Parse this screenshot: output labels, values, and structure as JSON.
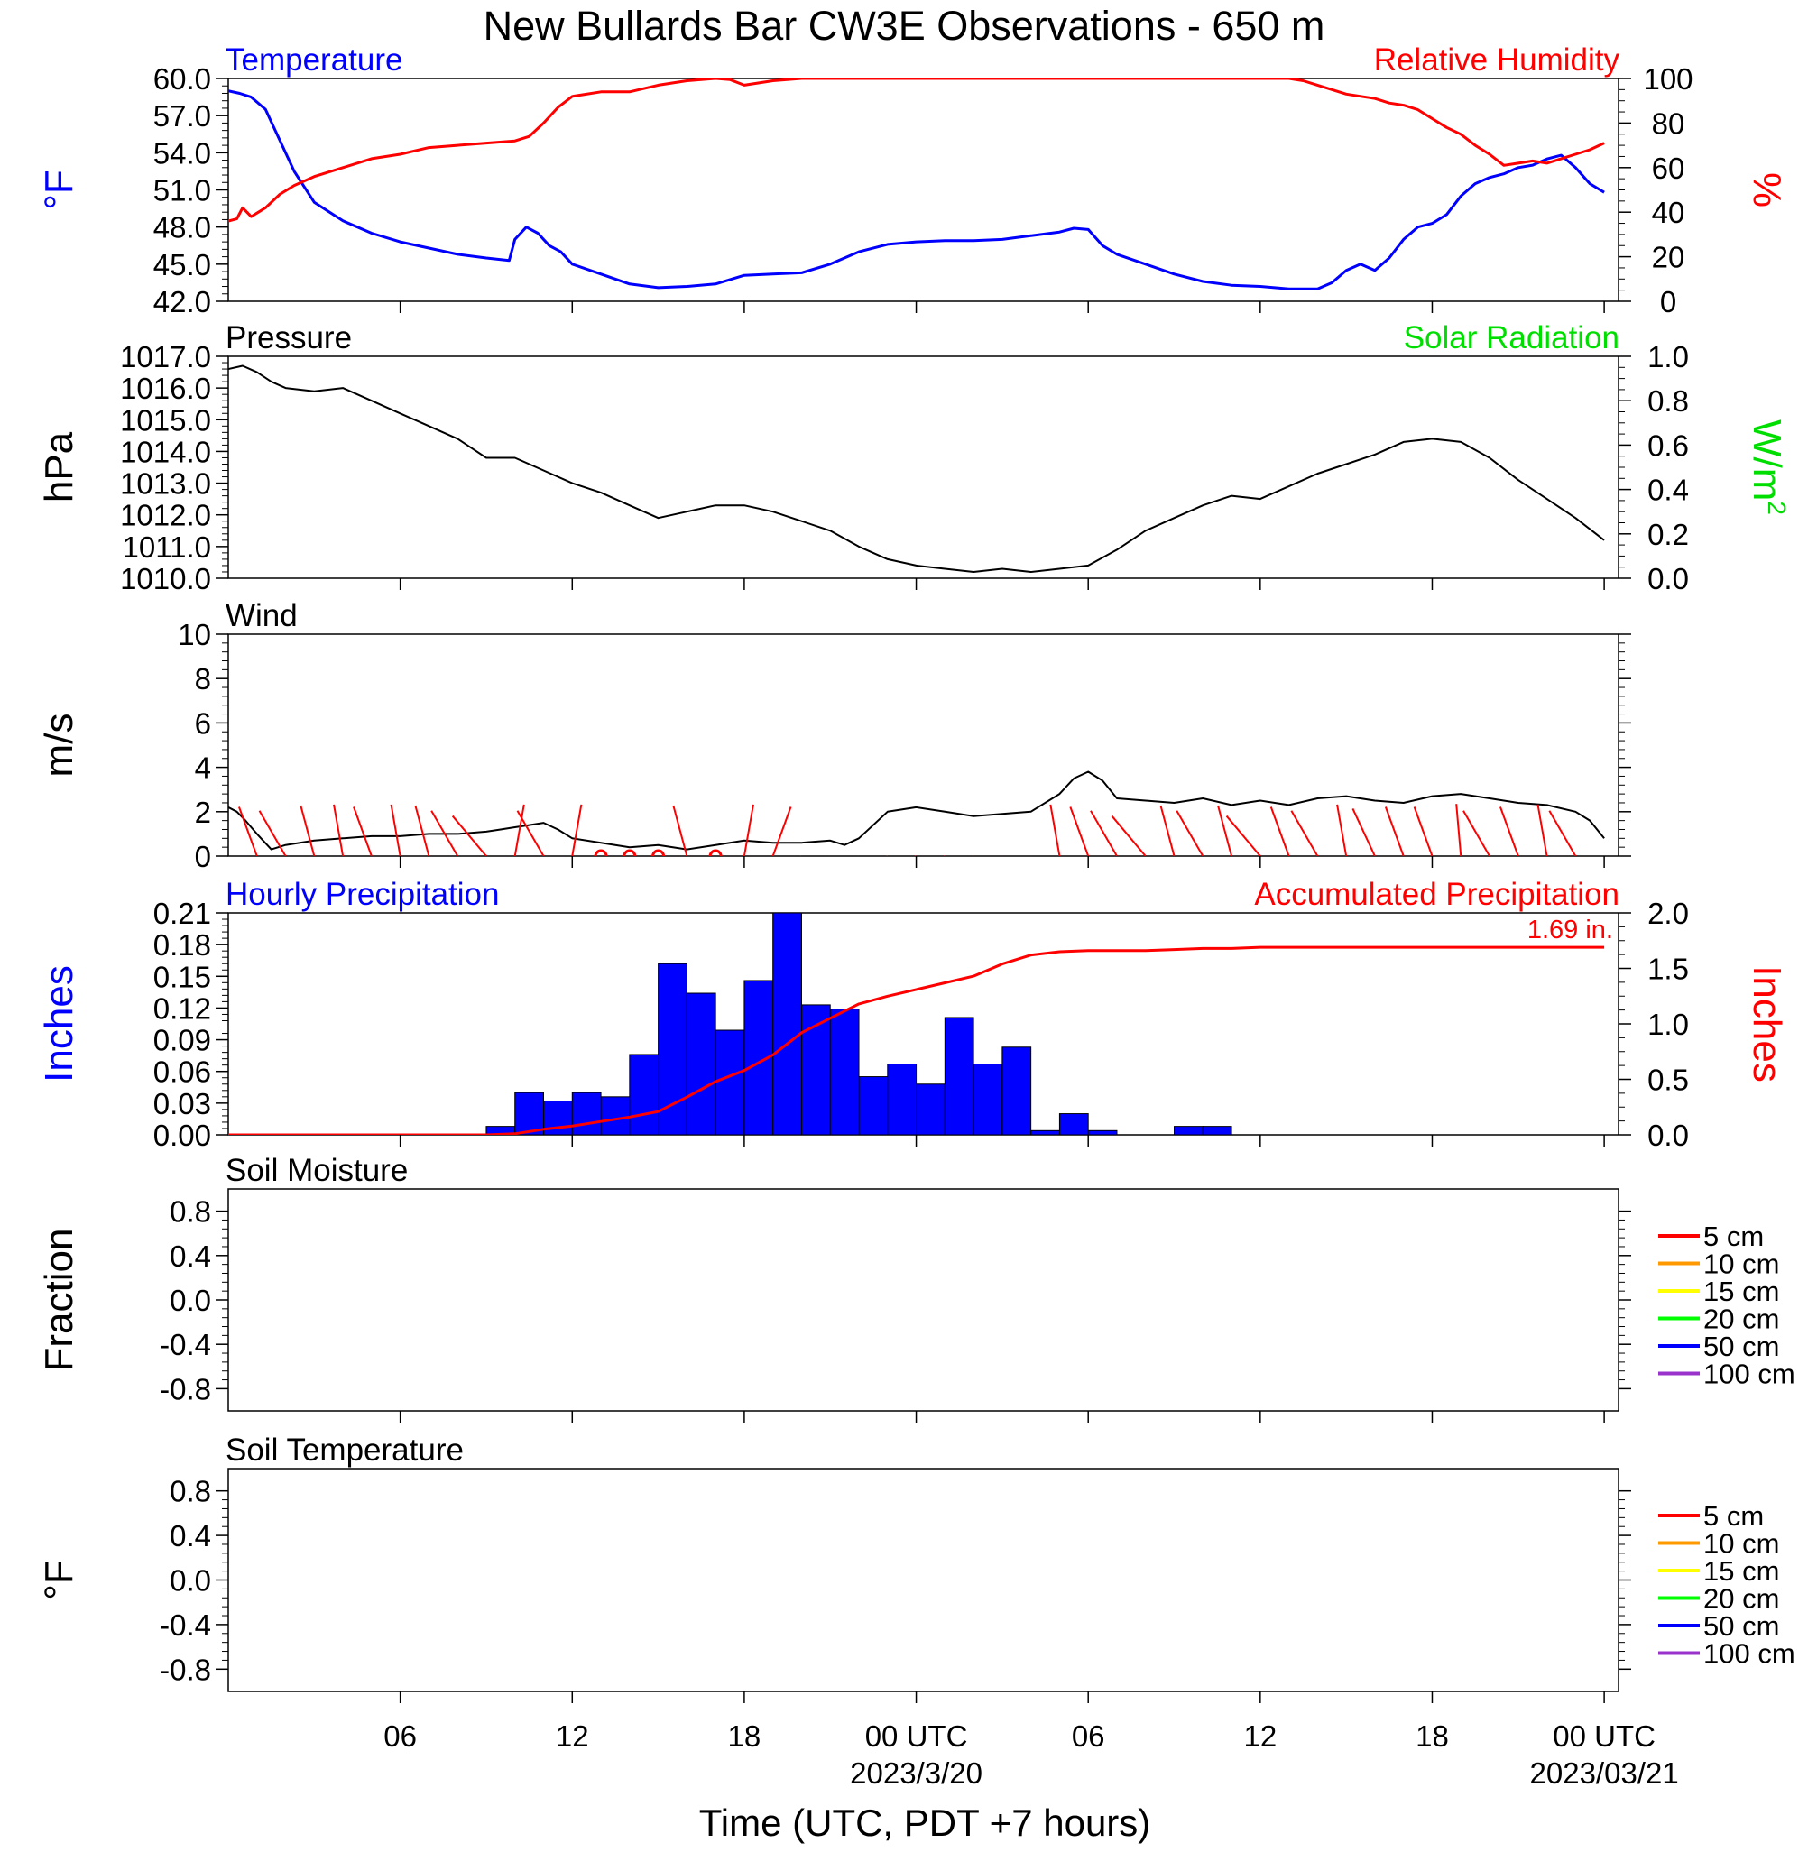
{
  "title": "New Bullards Bar CW3E Observations - 650 m",
  "xaxis": {
    "label": "Time (UTC, PDT +7 hours)",
    "ticks": [
      {
        "hour": 6,
        "label": "06",
        "date": ""
      },
      {
        "hour": 12,
        "label": "12",
        "date": ""
      },
      {
        "hour": 18,
        "label": "18",
        "date": ""
      },
      {
        "hour": 24,
        "label": "00 UTC",
        "date": "2023/3/20"
      },
      {
        "hour": 30,
        "label": "06",
        "date": ""
      },
      {
        "hour": 36,
        "label": "12",
        "date": ""
      },
      {
        "hour": 42,
        "label": "18",
        "date": ""
      },
      {
        "hour": 48,
        "label": "00 UTC",
        "date": "2023/03/21"
      }
    ]
  },
  "chart_data": [
    {
      "id": "temp-rh",
      "type": "line",
      "left_title": "Temperature",
      "right_title": "Relative Humidity",
      "ylabel_left": "°F",
      "ylabel_right": "%",
      "ylim_left": [
        42,
        60
      ],
      "ylim_right": [
        0,
        100
      ],
      "yticks_left": [
        "42.0",
        "45.0",
        "48.0",
        "51.0",
        "54.0",
        "57.0",
        "60.0"
      ],
      "yticks_right": [
        "0",
        "20",
        "40",
        "60",
        "80",
        "100"
      ],
      "colors": {
        "left": "#0000ff",
        "right": "#ff0000"
      },
      "series": [
        {
          "axis": "left",
          "color": "#0000ff",
          "x": [
            0,
            0.4,
            0.8,
            1.3,
            1.8,
            2.3,
            3.0,
            4.0,
            5.0,
            6.0,
            7.0,
            8.0,
            9.0,
            9.8,
            10.0,
            10.4,
            10.8,
            11.2,
            11.6,
            12.0,
            13.0,
            14.0,
            15.0,
            16.0,
            17.0,
            18.0,
            19.0,
            20.0,
            21.0,
            22.0,
            23.0,
            24.0,
            25.0,
            26.0,
            27.0,
            28.0,
            29.0,
            29.5,
            30.0,
            30.5,
            31.0,
            32.0,
            33.0,
            34.0,
            35.0,
            36.0,
            37.0,
            38.0,
            38.5,
            39.0,
            39.5,
            40.0,
            40.5,
            41.0,
            41.5,
            42.0,
            42.5,
            43.0,
            43.5,
            44.0,
            44.5,
            45.0,
            45.5,
            46.0,
            46.5,
            47.0,
            47.5,
            48.0
          ],
          "values": [
            59.0,
            58.8,
            58.5,
            57.5,
            55.0,
            52.5,
            50.0,
            48.5,
            47.5,
            46.8,
            46.3,
            45.8,
            45.5,
            45.3,
            47.0,
            48.0,
            47.5,
            46.5,
            46.0,
            45.0,
            44.2,
            43.4,
            43.1,
            43.2,
            43.4,
            44.1,
            44.2,
            44.3,
            45.0,
            46.0,
            46.6,
            46.8,
            46.9,
            46.9,
            47.0,
            47.3,
            47.6,
            47.9,
            47.8,
            46.5,
            45.8,
            45.0,
            44.2,
            43.6,
            43.3,
            43.2,
            43.0,
            43.0,
            43.5,
            44.5,
            45.0,
            44.5,
            45.5,
            47.0,
            48.0,
            48.3,
            49.0,
            50.5,
            51.5,
            52.0,
            52.3,
            52.8,
            53.0,
            53.5,
            53.8,
            52.8,
            51.5,
            50.8
          ]
        },
        {
          "axis": "right",
          "color": "#ff0000",
          "x": [
            0,
            0.3,
            0.5,
            0.8,
            1.3,
            1.8,
            2.3,
            3.0,
            4.0,
            5.0,
            6.0,
            7.0,
            8.0,
            9.0,
            10.0,
            10.5,
            11.0,
            11.5,
            12.0,
            13.0,
            14.0,
            15.0,
            16.0,
            16.5,
            17.0,
            17.5,
            18.0,
            19.0,
            20.0,
            22.0,
            24.0,
            26.0,
            28.0,
            30.0,
            32.0,
            34.0,
            36.0,
            37.0,
            37.5,
            38.0,
            39.0,
            40.0,
            40.5,
            41.0,
            41.5,
            42.0,
            42.5,
            43.0,
            43.5,
            44.0,
            44.5,
            45.0,
            45.5,
            46.0,
            46.5,
            47.0,
            47.5,
            48.0
          ],
          "values": [
            36,
            37,
            42,
            38,
            42,
            48,
            52,
            56,
            60,
            64,
            66,
            69,
            70,
            71,
            72,
            74,
            80,
            87,
            92,
            94,
            94,
            97,
            99,
            99.5,
            100,
            99.5,
            97,
            99,
            100,
            100,
            100,
            100,
            100,
            100,
            100,
            100,
            100,
            100,
            99,
            97,
            93,
            91,
            89,
            88,
            86,
            82,
            78,
            75,
            70,
            66,
            61,
            62,
            63,
            62,
            64,
            66,
            68,
            71
          ]
        }
      ]
    },
    {
      "id": "pressure",
      "type": "line",
      "left_title": "Pressure",
      "right_title": "Solar Radiation",
      "ylabel_left": "hPa",
      "ylabel_right": "W/m",
      "ylabel_right_sup": "2",
      "ylim_left": [
        1010,
        1017
      ],
      "ylim_right": [
        0,
        1
      ],
      "yticks_left": [
        "1010.0",
        "1011.0",
        "1012.0",
        "1013.0",
        "1014.0",
        "1015.0",
        "1016.0",
        "1017.0"
      ],
      "yticks_right": [
        "0.0",
        "0.2",
        "0.4",
        "0.6",
        "0.8",
        "1.0"
      ],
      "colors": {
        "left": "#000000",
        "right": "#00dd00"
      },
      "series": [
        {
          "axis": "left",
          "color": "#000000",
          "x": [
            0,
            0.5,
            1.0,
            1.5,
            2.0,
            3.0,
            4.0,
            5.0,
            6.0,
            7.0,
            8.0,
            8.5,
            9.0,
            10.0,
            11.0,
            12.0,
            13.0,
            14.0,
            15.0,
            16.0,
            17.0,
            18.0,
            19.0,
            20.0,
            21.0,
            22.0,
            23.0,
            24.0,
            25.0,
            26.0,
            27.0,
            28.0,
            29.0,
            30.0,
            31.0,
            32.0,
            33.0,
            34.0,
            35.0,
            36.0,
            37.0,
            38.0,
            39.0,
            40.0,
            41.0,
            42.0,
            43.0,
            44.0,
            45.0,
            46.0,
            47.0,
            48.0
          ],
          "values": [
            1016.6,
            1016.7,
            1016.5,
            1016.2,
            1016.0,
            1015.9,
            1016.0,
            1015.6,
            1015.2,
            1014.8,
            1014.4,
            1014.1,
            1013.8,
            1013.8,
            1013.4,
            1013.0,
            1012.7,
            1012.3,
            1011.9,
            1012.1,
            1012.3,
            1012.3,
            1012.1,
            1011.8,
            1011.5,
            1011.0,
            1010.6,
            1010.4,
            1010.3,
            1010.2,
            1010.3,
            1010.2,
            1010.3,
            1010.4,
            1010.9,
            1011.5,
            1011.9,
            1012.3,
            1012.6,
            1012.5,
            1012.9,
            1013.3,
            1013.6,
            1013.9,
            1014.3,
            1014.4,
            1014.3,
            1013.8,
            1013.1,
            1012.5,
            1011.9,
            1011.2
          ]
        }
      ]
    },
    {
      "id": "wind",
      "type": "line",
      "left_title": "Wind",
      "ylabel_left": "m/s",
      "ylim_left": [
        0,
        10
      ],
      "yticks_left": [
        "0",
        "2",
        "4",
        "6",
        "8",
        "10"
      ],
      "colors": {
        "left": "#000000",
        "barbs": "#ff0000"
      },
      "series": [
        {
          "axis": "left",
          "color": "#000000",
          "x": [
            0,
            0.3,
            0.6,
            1.0,
            1.5,
            2.0,
            3.0,
            4.0,
            5.0,
            6.0,
            7.0,
            8.0,
            9.0,
            9.5,
            10.0,
            10.5,
            11.0,
            11.5,
            12.0,
            13.0,
            14.0,
            15.0,
            16.0,
            17.0,
            18.0,
            19.0,
            20.0,
            21.0,
            21.5,
            22.0,
            23.0,
            24.0,
            25.0,
            26.0,
            27.0,
            28.0,
            29.0,
            29.5,
            30.0,
            30.5,
            31.0,
            32.0,
            33.0,
            34.0,
            35.0,
            36.0,
            37.0,
            38.0,
            39.0,
            40.0,
            41.0,
            42.0,
            43.0,
            44.0,
            45.0,
            46.0,
            47.0,
            47.5,
            48.0
          ],
          "values": [
            2.2,
            2.0,
            1.6,
            1.0,
            0.3,
            0.5,
            0.7,
            0.8,
            0.9,
            0.9,
            1.0,
            1.0,
            1.1,
            1.2,
            1.3,
            1.4,
            1.5,
            1.2,
            0.8,
            0.6,
            0.4,
            0.5,
            0.3,
            0.5,
            0.7,
            0.6,
            0.6,
            0.7,
            0.5,
            0.8,
            2.0,
            2.2,
            2.0,
            1.8,
            1.9,
            2.0,
            2.8,
            3.5,
            3.8,
            3.4,
            2.6,
            2.5,
            2.4,
            2.6,
            2.3,
            2.5,
            2.3,
            2.6,
            2.7,
            2.5,
            2.4,
            2.7,
            2.8,
            2.6,
            2.4,
            2.3,
            2.0,
            1.6,
            0.8
          ]
        },
        {
          "axis": "left",
          "color": "#ff0000",
          "kind": "barbs",
          "x": [
            1,
            2,
            3,
            4,
            5,
            6,
            7,
            8,
            9,
            10,
            11,
            12,
            13,
            14,
            15,
            16,
            17,
            18,
            19,
            20,
            21,
            22,
            23,
            24,
            25,
            26,
            27,
            28,
            29,
            30,
            31,
            32,
            33,
            34,
            35,
            36,
            37,
            38,
            39,
            40,
            41,
            42,
            43,
            44,
            45,
            46,
            47
          ],
          "values": [
            1,
            1,
            1,
            1,
            1,
            1,
            1,
            1,
            1,
            1,
            1,
            1,
            0,
            0,
            0,
            1,
            0,
            1,
            1,
            1,
            1,
            1,
            1,
            1,
            1,
            1,
            1,
            1,
            1,
            1,
            1,
            1,
            1,
            1,
            1,
            1,
            1,
            1,
            1,
            1,
            1,
            1,
            1,
            1,
            1,
            1,
            1
          ],
          "dir": [
            340,
            330,
            345,
            350,
            340,
            350,
            345,
            330,
            320,
            10,
            330,
            10,
            0,
            0,
            0,
            345,
            0,
            10,
            20,
            200,
            190,
            190,
            215,
            220,
            210,
            195,
            185,
            170,
            350,
            340,
            330,
            320,
            345,
            330,
            345,
            320,
            340,
            330,
            350,
            335,
            340,
            340,
            355,
            330,
            340,
            350,
            330
          ]
        }
      ]
    },
    {
      "id": "precip",
      "type": "bar",
      "left_title": "Hourly Precipitation",
      "right_title": "Accumulated Precipitation",
      "ylabel_left": "Inches",
      "ylabel_right": "Inches",
      "ylim_left": [
        0,
        0.21
      ],
      "ylim_right": [
        0,
        2.0
      ],
      "yticks_left": [
        "0.00",
        "0.03",
        "0.06",
        "0.09",
        "0.12",
        "0.15",
        "0.18",
        "0.21"
      ],
      "yticks_right": [
        "0.0",
        "0.5",
        "1.0",
        "1.5",
        "2.0"
      ],
      "annotation": "1.69 in.",
      "colors": {
        "left": "#0000ff",
        "right": "#ff0000"
      },
      "series": [
        {
          "axis": "left",
          "color": "#0000ff",
          "kind": "bars",
          "x": [
            9,
            10,
            11,
            12,
            13,
            14,
            15,
            16,
            17,
            18,
            19,
            20,
            21,
            22,
            23,
            24,
            25,
            26,
            27,
            28,
            29,
            30,
            31,
            32,
            33,
            34
          ],
          "values": [
            0.008,
            0.04,
            0.032,
            0.04,
            0.036,
            0.076,
            0.162,
            0.134,
            0.099,
            0.146,
            0.21,
            0.123,
            0.119,
            0.055,
            0.067,
            0.048,
            0.111,
            0.067,
            0.083,
            0.004,
            0.02,
            0.004,
            0,
            0,
            0.008,
            0.008
          ]
        },
        {
          "axis": "right",
          "color": "#ff0000",
          "x": [
            0,
            9,
            10,
            11,
            12,
            13,
            14,
            15,
            16,
            17,
            18,
            19,
            20,
            21,
            22,
            23,
            24,
            25,
            26,
            27,
            28,
            29,
            30,
            31,
            32,
            33,
            34,
            35,
            36,
            40,
            48
          ],
          "values": [
            0,
            0,
            0.01,
            0.05,
            0.08,
            0.12,
            0.16,
            0.21,
            0.34,
            0.48,
            0.58,
            0.72,
            0.92,
            1.05,
            1.18,
            1.25,
            1.31,
            1.37,
            1.43,
            1.54,
            1.62,
            1.65,
            1.66,
            1.66,
            1.66,
            1.67,
            1.68,
            1.68,
            1.69,
            1.69,
            1.69
          ]
        }
      ]
    },
    {
      "id": "soil-moisture",
      "type": "line",
      "left_title": "Soil Moisture",
      "ylabel_left": "Fraction",
      "ylim_left": [
        -1,
        1
      ],
      "yticks_left": [
        "-0.8",
        "-0.4",
        "0.0",
        "0.4",
        "0.8"
      ],
      "legend": [
        "5 cm",
        "10 cm",
        "15 cm",
        "20 cm",
        "50 cm",
        "100 cm"
      ],
      "legend_colors": [
        "#ff0000",
        "#ff9900",
        "#ffff00",
        "#00ff00",
        "#0000ff",
        "#9933cc"
      ],
      "series": []
    },
    {
      "id": "soil-temp",
      "type": "line",
      "left_title": "Soil Temperature",
      "ylabel_left": "°F",
      "ylim_left": [
        -1,
        1
      ],
      "yticks_left": [
        "-0.8",
        "-0.4",
        "0.0",
        "0.4",
        "0.8"
      ],
      "legend": [
        "5 cm",
        "10 cm",
        "15 cm",
        "20 cm",
        "50 cm",
        "100 cm"
      ],
      "legend_colors": [
        "#ff0000",
        "#ff9900",
        "#ffff00",
        "#00ff00",
        "#0000ff",
        "#9933cc"
      ],
      "series": []
    }
  ]
}
